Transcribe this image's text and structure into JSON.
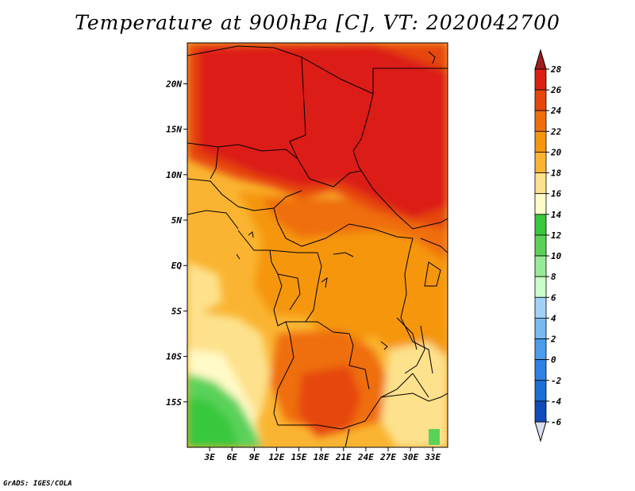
{
  "title": "Temperature at 900hPa [C], VT: 2020042700",
  "credit": "GrADS: IGES/COLA",
  "map": {
    "lon_range": [
      0,
      35
    ],
    "lat_range": [
      -20,
      24.5
    ],
    "lat_ticks": [
      {
        "value": 20,
        "label": "20N"
      },
      {
        "value": 15,
        "label": "15N"
      },
      {
        "value": 10,
        "label": "10N"
      },
      {
        "value": 5,
        "label": "5N"
      },
      {
        "value": 0,
        "label": "EQ"
      },
      {
        "value": -5,
        "label": "5S"
      },
      {
        "value": -10,
        "label": "10S"
      },
      {
        "value": -15,
        "label": "15S"
      }
    ],
    "lon_ticks": [
      {
        "value": 3,
        "label": "3E"
      },
      {
        "value": 6,
        "label": "6E"
      },
      {
        "value": 9,
        "label": "9E"
      },
      {
        "value": 12,
        "label": "12E"
      },
      {
        "value": 15,
        "label": "15E"
      },
      {
        "value": 18,
        "label": "18E"
      },
      {
        "value": 21,
        "label": "21E"
      },
      {
        "value": 24,
        "label": "24E"
      },
      {
        "value": 27,
        "label": "27E"
      },
      {
        "value": 30,
        "label": "30E"
      },
      {
        "value": 33,
        "label": "33E"
      }
    ]
  },
  "colorbar": {
    "levels": [
      {
        "value": "28",
        "color": "#dc1e14"
      },
      {
        "value": "26",
        "color": "#e6460a"
      },
      {
        "value": "24",
        "color": "#ef6e0a"
      },
      {
        "value": "22",
        "color": "#f5960f"
      },
      {
        "value": "20",
        "color": "#fab432"
      },
      {
        "value": "18",
        "color": "#fde18c"
      },
      {
        "value": "16",
        "color": "#fffac8"
      },
      {
        "value": "14",
        "color": "#37c83c"
      },
      {
        "value": "12",
        "color": "#5ad25a"
      },
      {
        "value": "10",
        "color": "#96eb96"
      },
      {
        "value": "8",
        "color": "#c8ffc8"
      },
      {
        "value": "6",
        "color": "#a0d2f5"
      },
      {
        "value": "4",
        "color": "#78b9f0"
      },
      {
        "value": "2",
        "color": "#4b9ceb"
      },
      {
        "value": "0",
        "color": "#2d82e1"
      },
      {
        "value": "-2",
        "color": "#1e6ed7"
      },
      {
        "value": "-4",
        "color": "#0f4bb9"
      },
      {
        "value": "-6",
        "color": "#0a1e8c"
      }
    ],
    "top_color": "#a01e1e",
    "bottom_color": "#dcdcf5"
  }
}
